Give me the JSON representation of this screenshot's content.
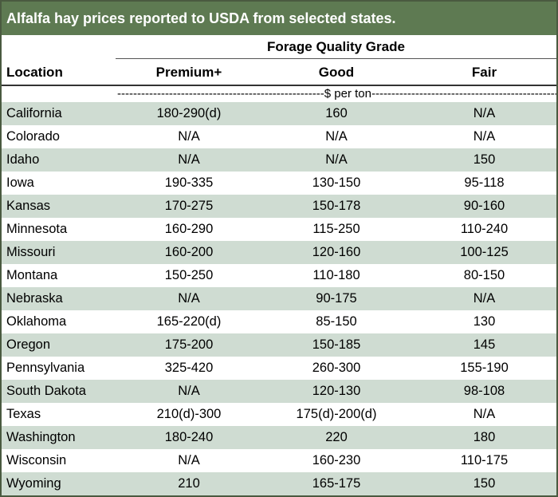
{
  "title": "Alfalfa hay prices reported to USDA from selected states.",
  "group_header": "Forage Quality Grade",
  "columns": {
    "location": "Location",
    "premium": "Premium+",
    "good": "Good",
    "fair": "Fair"
  },
  "units": "----------------------------------------------------$ per ton----------------------------------------------------",
  "rows": [
    {
      "location": "California",
      "premium": "180-290(d)",
      "good": "160",
      "fair": "N/A"
    },
    {
      "location": "Colorado",
      "premium": "N/A",
      "good": "N/A",
      "fair": "N/A"
    },
    {
      "location": "Idaho",
      "premium": "N/A",
      "good": "N/A",
      "fair": "150"
    },
    {
      "location": "Iowa",
      "premium": "190-335",
      "good": "130-150",
      "fair": "95-118"
    },
    {
      "location": "Kansas",
      "premium": "170-275",
      "good": "150-178",
      "fair": "90-160"
    },
    {
      "location": "Minnesota",
      "premium": "160-290",
      "good": "115-250",
      "fair": "110-240"
    },
    {
      "location": "Missouri",
      "premium": "160-200",
      "good": "120-160",
      "fair": "100-125"
    },
    {
      "location": "Montana",
      "premium": "150-250",
      "good": "110-180",
      "fair": "80-150"
    },
    {
      "location": "Nebraska",
      "premium": "N/A",
      "good": "90-175",
      "fair": "N/A"
    },
    {
      "location": "Oklahoma",
      "premium": "165-220(d)",
      "good": "85-150",
      "fair": "130"
    },
    {
      "location": "Oregon",
      "premium": "175-200",
      "good": "150-185",
      "fair": "145"
    },
    {
      "location": "Pennsylvania",
      "premium": "325-420",
      "good": "260-300",
      "fair": "155-190"
    },
    {
      "location": "South Dakota",
      "premium": "N/A",
      "good": "120-130",
      "fair": "98-108"
    },
    {
      "location": "Texas",
      "premium": "210(d)-300",
      "good": "175(d)-200(d)",
      "fair": "N/A"
    },
    {
      "location": "Washington",
      "premium": "180-240",
      "good": "220",
      "fair": "180"
    },
    {
      "location": "Wisconsin",
      "premium": "N/A",
      "good": "160-230",
      "fair": "110-175"
    },
    {
      "location": "Wyoming",
      "premium": "210",
      "good": "165-175",
      "fair": "150"
    }
  ]
}
